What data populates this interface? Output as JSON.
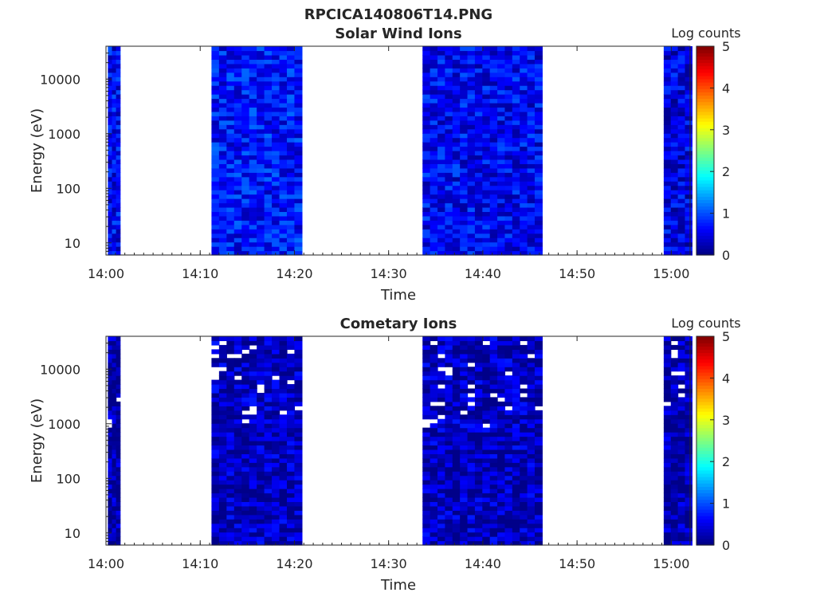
{
  "figure": {
    "title": "RPCICA140806T14.PNG",
    "colormap": [
      "#00007f",
      "#0000ff",
      "#007fff",
      "#00ffff",
      "#7fff7f",
      "#ffff00",
      "#ff7f00",
      "#ff0000",
      "#7f0000"
    ],
    "background": "#ffffff"
  },
  "chart_data": [
    {
      "type": "heatmap",
      "title": "Solar Wind Ions",
      "xlabel": "Time",
      "ylabel": "Energy (eV)",
      "xlim": [
        "14:00",
        "15:02"
      ],
      "ylim": [
        6,
        40000
      ],
      "yscale": "log",
      "xticks": [
        "14:00",
        "14:10",
        "14:20",
        "14:30",
        "14:40",
        "14:50",
        "15:00"
      ],
      "yticks": [
        "10",
        "100",
        "1000",
        "10000"
      ],
      "colorbar": {
        "label": "Log counts",
        "range": [
          0,
          5
        ],
        "ticks": [
          "0",
          "1",
          "2",
          "3",
          "4",
          "5"
        ]
      },
      "data_intervals": [
        {
          "start": "14:00.2",
          "end": "14:01.5",
          "typical_log_counts": 0.6
        },
        {
          "start": "14:11.2",
          "end": "14:20.8",
          "typical_log_counts": 0.7
        },
        {
          "start": "14:33.6",
          "end": "14:46.3",
          "typical_log_counts": 0.6
        },
        {
          "start": "14:59.2",
          "end": "15:02.2",
          "typical_log_counts": 0.5
        }
      ],
      "grid": false
    },
    {
      "type": "heatmap",
      "title": "Cometary Ions",
      "xlabel": "Time",
      "ylabel": "Energy (eV)",
      "xlim": [
        "14:00",
        "15:02"
      ],
      "ylim": [
        6,
        40000
      ],
      "yscale": "log",
      "xticks": [
        "14:00",
        "14:10",
        "14:20",
        "14:30",
        "14:40",
        "14:50",
        "15:00"
      ],
      "yticks": [
        "10",
        "100",
        "1000",
        "10000"
      ],
      "colorbar": {
        "label": "Log counts",
        "range": [
          0,
          5
        ],
        "ticks": [
          "0",
          "1",
          "2",
          "3",
          "4",
          "5"
        ]
      },
      "data_intervals": [
        {
          "start": "14:00.2",
          "end": "14:01.5",
          "typical_log_counts": 0.2
        },
        {
          "start": "14:11.2",
          "end": "14:20.8",
          "typical_log_counts": 0.3
        },
        {
          "start": "14:33.6",
          "end": "14:46.3",
          "typical_log_counts": 0.3
        },
        {
          "start": "14:59.2",
          "end": "15:02.2",
          "typical_log_counts": 0.2
        }
      ],
      "grid": false
    }
  ]
}
